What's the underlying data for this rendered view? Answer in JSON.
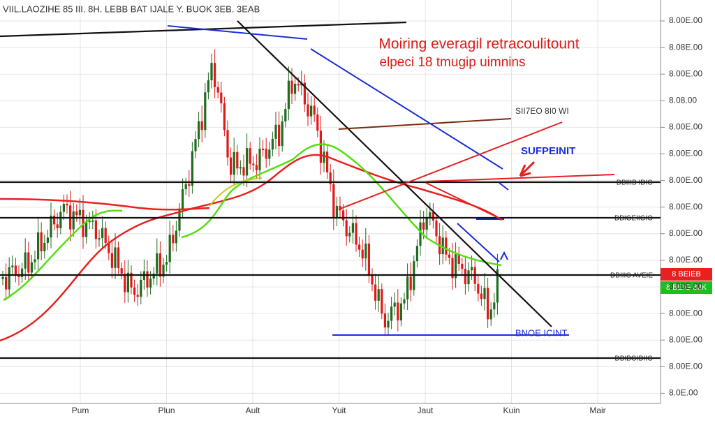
{
  "header": {
    "title": "VIIL.LAOZIHE 85 III. 8H. LEBB BAT IJALE Y. BUOK 3EB. 3EAB"
  },
  "annotation": {
    "line1": "Moiring everagil retracoulitount",
    "line2": "elpeci 18 tmugip uimnins"
  },
  "labels": {
    "trend": "SII7EO 8I0 WI",
    "support": "SUFPEINIT",
    "bottom": "BNOE ICINT"
  },
  "level_labels": [
    "DBIIIB IDIG",
    "DBIGEIIGIO",
    "DBIIIG AVEIE",
    "DBIBGIDIIG"
  ],
  "price_badges": {
    "red": "8 BEIEB",
    "green": "8 BEIG 8IIK"
  },
  "price_axis": [
    "8.00E.00",
    "8.08E.00",
    "8.00E.00",
    "8.08.00",
    "8.00E.00",
    "8.00E.00",
    "8.00E.00",
    "8.00E.00",
    "8.00E.00",
    "8.00E.00",
    "8.00E.00",
    "8.00E.00",
    "8.00E.00",
    "8.00E.00",
    "8.0E.00"
  ],
  "time_axis": [
    "Pum",
    "Plun",
    "Ault",
    "Yuit",
    "Jaut",
    "Kuin",
    "Mair"
  ]
}
